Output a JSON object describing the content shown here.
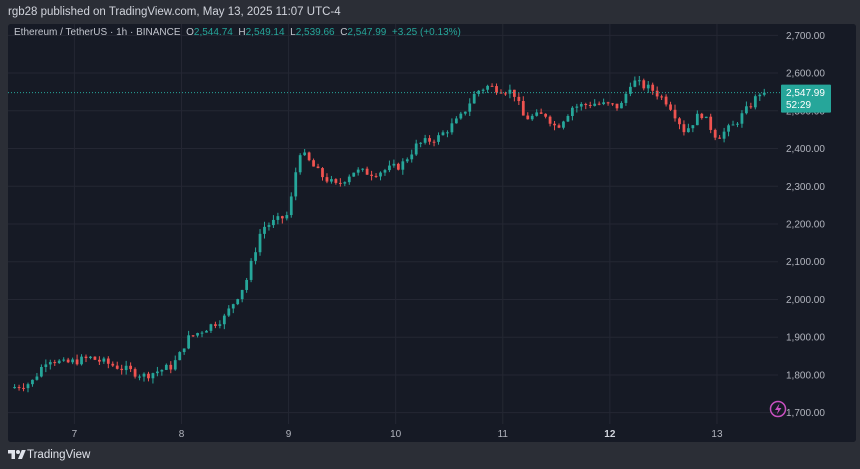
{
  "header": {
    "published_line": "rgb28 published on TradingView.com, May 13, 2025 11:07 UTC-4"
  },
  "footer": {
    "brand": "TradingView"
  },
  "chart_data": {
    "type": "candlestick",
    "symbol_line": "Ethereum / TetherUS · 1h · BINANCE",
    "ohlc": {
      "o_label": "O",
      "o": "2,544.74",
      "h_label": "H",
      "h": "2,549.14",
      "l_label": "L",
      "l": "2,539.66",
      "c_label": "C",
      "c": "2,547.99",
      "change": "+3.25 (+0.13%)"
    },
    "last_price_label": "2,547.99",
    "countdown_label": "52:29",
    "last_price": 2547.99,
    "ylim": [
      1670,
      2730
    ],
    "y_ticks": [
      1700,
      1800,
      1900,
      2000,
      2100,
      2200,
      2300,
      2400,
      2500,
      2600,
      2700
    ],
    "y_tick_labels": [
      "1,700.00",
      "1,800.00",
      "1,900.00",
      "2,000.00",
      "2,100.00",
      "2,200.00",
      "2,300.00",
      "2,400.00",
      "2,500.00",
      "2,600.00",
      "2,700.00"
    ],
    "x_ticks": [
      {
        "day": 7,
        "label": "7"
      },
      {
        "day": 8,
        "label": "8"
      },
      {
        "day": 9,
        "label": "9"
      },
      {
        "day": 10,
        "label": "10"
      },
      {
        "day": 11,
        "label": "11"
      },
      {
        "day": 12,
        "label": "12",
        "bold": true
      },
      {
        "day": 13,
        "label": "13"
      }
    ],
    "x_range_days": [
      6.38,
      13.57
    ],
    "grid": true,
    "colors": {
      "up": "#26a69a",
      "down": "#ef5350",
      "background": "#161a25",
      "grid": "#242733",
      "axis_text": "#b2b5be",
      "price_line": "#26a69a"
    },
    "path_points": [
      [
        6.4,
        1765
      ],
      [
        6.6,
        1780
      ],
      [
        6.75,
        1845
      ],
      [
        6.9,
        1830
      ],
      [
        7.15,
        1845
      ],
      [
        7.4,
        1822
      ],
      [
        7.65,
        1798
      ],
      [
        7.9,
        1822
      ],
      [
        7.97,
        1845
      ],
      [
        8.05,
        1895
      ],
      [
        8.4,
        1952
      ],
      [
        8.6,
        2045
      ],
      [
        8.75,
        2190
      ],
      [
        8.9,
        2210
      ],
      [
        9.0,
        2225
      ],
      [
        9.1,
        2395
      ],
      [
        9.3,
        2330
      ],
      [
        9.45,
        2300
      ],
      [
        9.6,
        2340
      ],
      [
        9.8,
        2335
      ],
      [
        10.05,
        2355
      ],
      [
        10.2,
        2410
      ],
      [
        10.4,
        2430
      ],
      [
        10.6,
        2480
      ],
      [
        10.75,
        2550
      ],
      [
        10.85,
        2565
      ],
      [
        11.1,
        2550
      ],
      [
        11.2,
        2480
      ],
      [
        11.4,
        2490
      ],
      [
        11.5,
        2455
      ],
      [
        11.65,
        2510
      ],
      [
        11.85,
        2520
      ],
      [
        12.1,
        2510
      ],
      [
        12.2,
        2580
      ],
      [
        12.4,
        2555
      ],
      [
        12.55,
        2520
      ],
      [
        12.7,
        2445
      ],
      [
        12.85,
        2495
      ],
      [
        13.0,
        2430
      ],
      [
        13.15,
        2460
      ],
      [
        13.3,
        2510
      ],
      [
        13.4,
        2548
      ],
      [
        13.47,
        2548
      ]
    ]
  }
}
